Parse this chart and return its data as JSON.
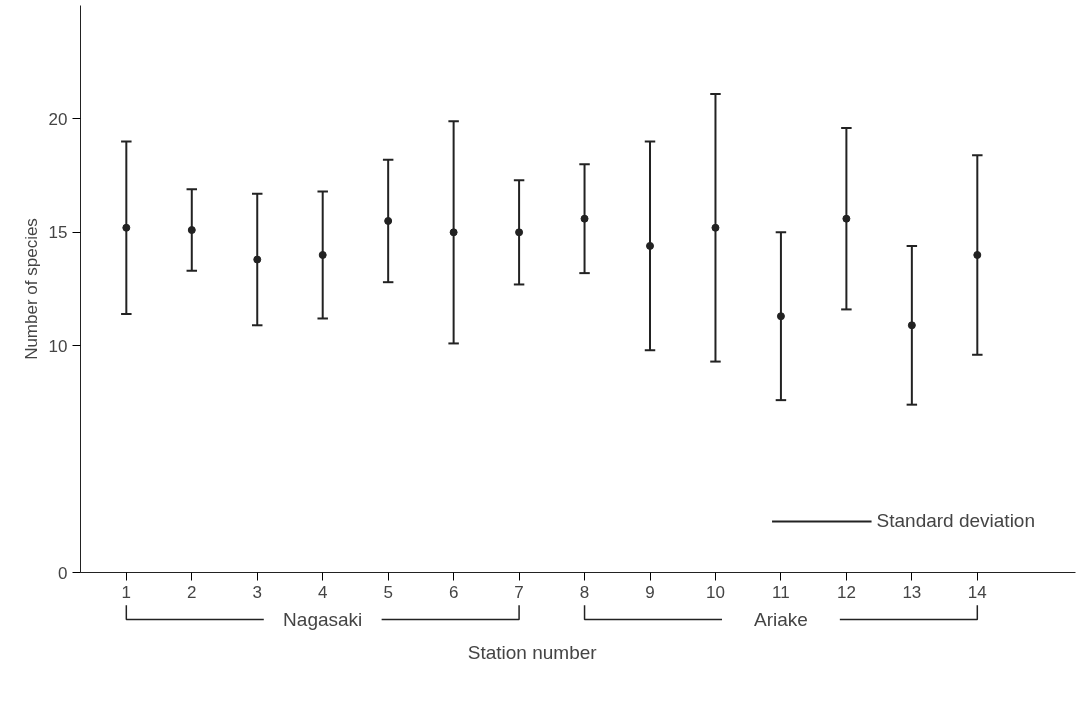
{
  "chart_data": {
    "type": "scatter",
    "xlabel": "Station number",
    "ylabel": "Number of species",
    "x": [
      1,
      2,
      3,
      4,
      5,
      6,
      7,
      8,
      9,
      10,
      11,
      12,
      13,
      14
    ],
    "series": [
      {
        "name": "Standard deviation",
        "color": "#222222",
        "values": [
          15.2,
          15.1,
          13.8,
          14.0,
          15.5,
          15.0,
          15.0,
          15.6,
          14.4,
          15.2,
          11.3,
          15.6,
          10.9,
          14.0
        ],
        "errors": [
          3.8,
          1.8,
          2.9,
          2.8,
          2.7,
          4.9,
          2.3,
          2.4,
          4.6,
          5.9,
          3.7,
          4.0,
          3.5,
          4.4
        ]
      }
    ],
    "xlim": [
      0.3,
      15.5
    ],
    "xticks": [
      1,
      2,
      3,
      4,
      5,
      6,
      7,
      8,
      9,
      10,
      11,
      12,
      13,
      14
    ],
    "ylim": [
      0,
      25
    ],
    "yticks": [
      0,
      10,
      15,
      20
    ],
    "annotations": [
      "Nagasaki",
      "Ariake"
    ],
    "marker": "circle",
    "grid": false,
    "legend": "bottom right"
  }
}
